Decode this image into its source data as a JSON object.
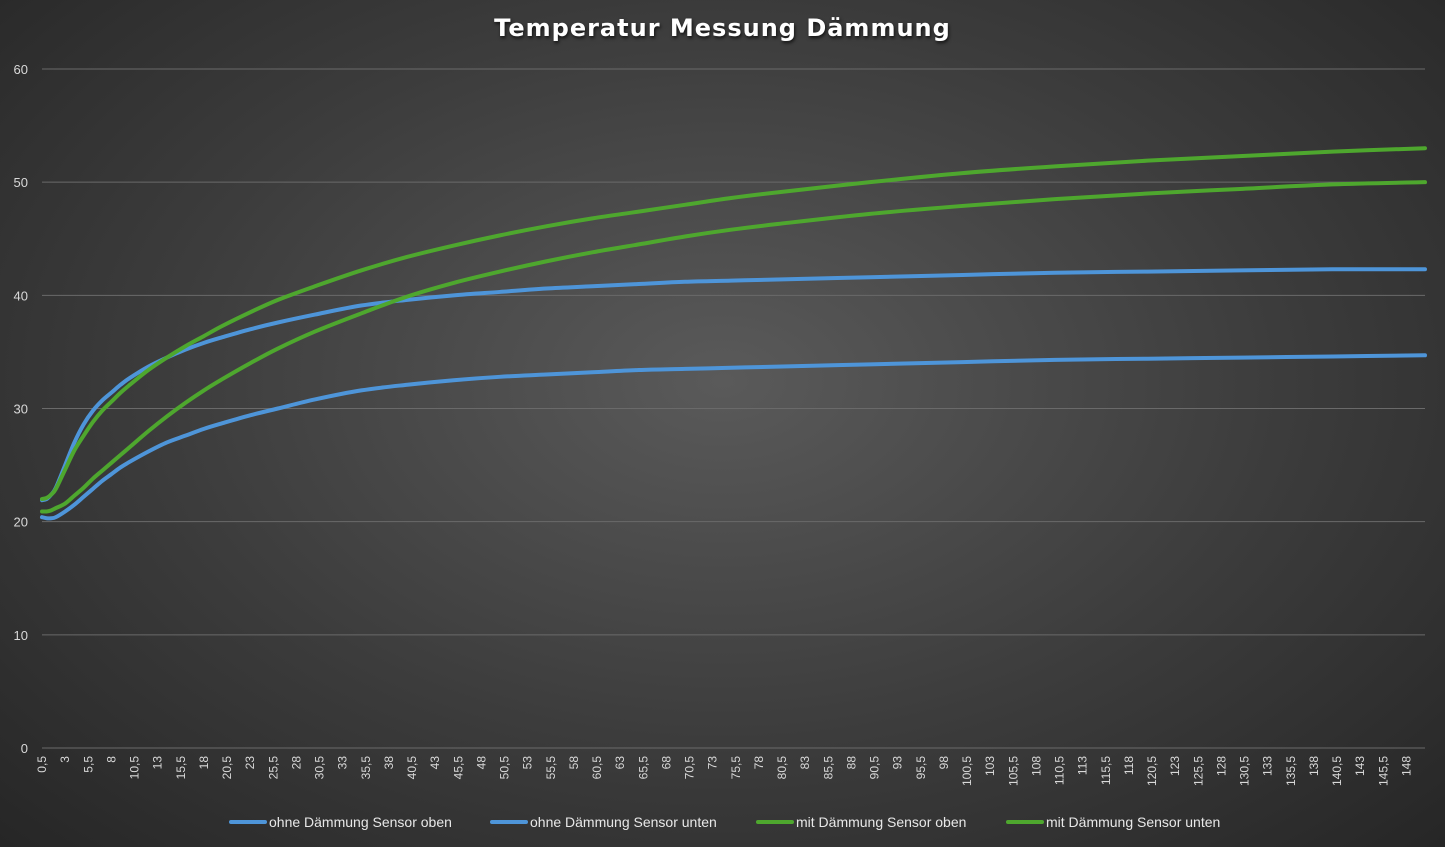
{
  "chart_data": {
    "type": "line",
    "title": "Temperatur Messung Dämmung",
    "ylim": [
      0,
      60
    ],
    "yticks": [
      "0",
      "10",
      "20",
      "30",
      "40",
      "50",
      "60"
    ],
    "xlim": [
      0.5,
      150
    ],
    "grid": true,
    "legend_position": "bottom",
    "xtick_labels": [
      "0,5",
      "3",
      "5,5",
      "8",
      "10,5",
      "13",
      "15,5",
      "18",
      "20,5",
      "23",
      "25,5",
      "28",
      "30,5",
      "33",
      "35,5",
      "38",
      "40,5",
      "43",
      "45,5",
      "48",
      "50,5",
      "53",
      "55,5",
      "58",
      "60,5",
      "63",
      "65,5",
      "68",
      "70,5",
      "73",
      "75,5",
      "78",
      "80,5",
      "83",
      "85,5",
      "88",
      "90,5",
      "93",
      "95,5",
      "98",
      "100,5",
      "103",
      "105,5",
      "108",
      "110,5",
      "113",
      "115,5",
      "118",
      "120,5",
      "123",
      "125,5",
      "128",
      "130,5",
      "133",
      "135,5",
      "138",
      "140,5",
      "143",
      "145,5",
      "148"
    ],
    "series": [
      {
        "name": "ohne Dämmung Sensor oben",
        "color": "#4e95d9",
        "x": [
          0.5,
          1,
          1.5,
          2,
          3,
          4,
          5,
          6,
          7,
          8,
          9,
          10,
          12,
          14,
          16,
          18,
          20,
          23,
          26,
          30,
          35,
          40,
          45,
          50,
          55,
          60,
          65,
          70,
          75,
          80,
          90,
          100,
          110,
          120,
          130,
          140,
          150
        ],
        "y": [
          21.9,
          22.0,
          22.4,
          23.0,
          25.0,
          27.0,
          28.6,
          29.8,
          30.7,
          31.4,
          32.1,
          32.7,
          33.7,
          34.5,
          35.2,
          35.8,
          36.3,
          37.0,
          37.6,
          38.3,
          39.1,
          39.6,
          40.0,
          40.3,
          40.6,
          40.8,
          41.0,
          41.2,
          41.3,
          41.4,
          41.6,
          41.8,
          42.0,
          42.1,
          42.2,
          42.3,
          42.3
        ]
      },
      {
        "name": "ohne Dämmung Sensor unten",
        "color": "#4e95d9",
        "x": [
          0.5,
          1,
          1.5,
          2,
          3,
          4,
          5,
          6,
          7,
          8,
          9,
          10,
          12,
          14,
          16,
          18,
          20,
          23,
          26,
          30,
          35,
          40,
          45,
          50,
          55,
          60,
          65,
          70,
          75,
          80,
          90,
          100,
          110,
          120,
          130,
          140,
          150
        ],
        "y": [
          20.4,
          20.3,
          20.3,
          20.4,
          20.9,
          21.5,
          22.2,
          22.9,
          23.6,
          24.2,
          24.8,
          25.3,
          26.2,
          27.0,
          27.6,
          28.2,
          28.7,
          29.4,
          30.0,
          30.8,
          31.6,
          32.1,
          32.5,
          32.8,
          33.0,
          33.2,
          33.4,
          33.5,
          33.6,
          33.7,
          33.9,
          34.1,
          34.3,
          34.4,
          34.5,
          34.6,
          34.7
        ]
      },
      {
        "name": "mit Dämmung Sensor oben",
        "color": "#4ea72e",
        "x": [
          0.5,
          1,
          1.5,
          2,
          3,
          4,
          5,
          6,
          7,
          8,
          9,
          10,
          12,
          14,
          16,
          18,
          20,
          23,
          26,
          30,
          35,
          40,
          45,
          50,
          55,
          60,
          65,
          70,
          75,
          80,
          90,
          100,
          110,
          120,
          130,
          140,
          150
        ],
        "y": [
          22.0,
          22.1,
          22.4,
          22.9,
          24.6,
          26.3,
          27.6,
          28.8,
          29.8,
          30.6,
          31.4,
          32.1,
          33.4,
          34.5,
          35.5,
          36.4,
          37.3,
          38.5,
          39.6,
          40.8,
          42.2,
          43.4,
          44.4,
          45.3,
          46.1,
          46.8,
          47.4,
          48.0,
          48.6,
          49.1,
          50.0,
          50.8,
          51.4,
          51.9,
          52.3,
          52.7,
          53.0
        ]
      },
      {
        "name": "mit Dämmung Sensor unten",
        "color": "#4ea72e",
        "x": [
          0.5,
          1,
          1.5,
          2,
          3,
          4,
          5,
          6,
          7,
          8,
          9,
          10,
          12,
          14,
          16,
          18,
          20,
          23,
          26,
          30,
          35,
          40,
          45,
          50,
          55,
          60,
          65,
          70,
          75,
          80,
          90,
          100,
          110,
          120,
          130,
          140,
          150
        ],
        "y": [
          20.9,
          20.9,
          21.0,
          21.2,
          21.6,
          22.3,
          23.0,
          23.8,
          24.5,
          25.2,
          25.9,
          26.6,
          28.0,
          29.3,
          30.5,
          31.6,
          32.6,
          34.0,
          35.3,
          36.8,
          38.4,
          39.9,
          41.1,
          42.1,
          43.0,
          43.8,
          44.5,
          45.2,
          45.8,
          46.3,
          47.2,
          47.9,
          48.5,
          49.0,
          49.4,
          49.8,
          50.0
        ]
      }
    ]
  }
}
